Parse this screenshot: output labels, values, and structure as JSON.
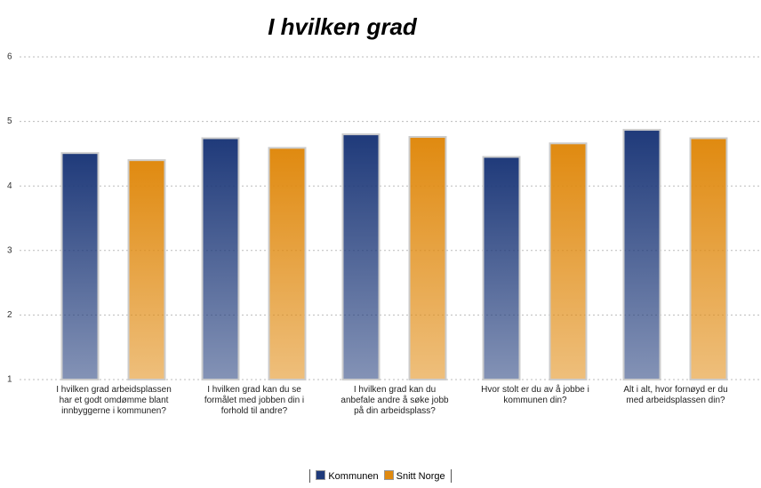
{
  "chart_data": {
    "type": "bar",
    "title": "I hvilken grad",
    "categories": [
      "I hvilken grad arbeidsplassen har et godt omdømme blant innbyggerne i kommunen?",
      "I hvilken grad kan du se formålet med jobben din i forhold til andre?",
      "I hvilken grad kan du anbefale andre å søke jobb på din arbeidsplass?",
      "Hvor stolt er du av å jobbe i kommunen din?",
      "Alt i alt, hvor fornøyd er du med arbeidsplassen din?"
    ],
    "series": [
      {
        "name": "Kommunen",
        "color": "#1f3a7a",
        "values": [
          4.51,
          4.74,
          4.8,
          4.45,
          4.87
        ]
      },
      {
        "name": "Snitt Norge",
        "color": "#e08a10",
        "values": [
          4.4,
          4.59,
          4.76,
          4.66,
          4.74
        ]
      }
    ],
    "ylim": [
      1,
      6
    ],
    "yticks": [
      1,
      2,
      3,
      4,
      5,
      6
    ],
    "grid": true
  }
}
